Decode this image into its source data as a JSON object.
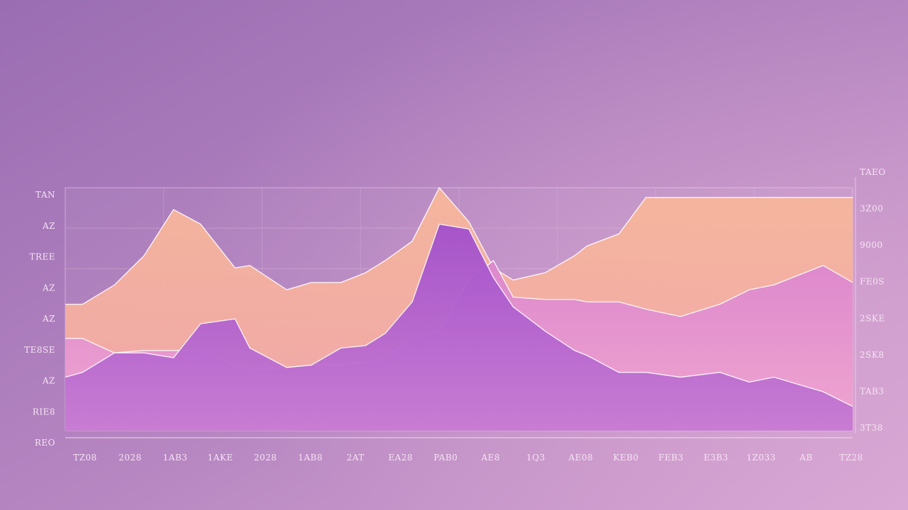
{
  "chart_data": {
    "type": "area",
    "title": "",
    "xlabel": "",
    "ylabel": "",
    "x_tick_labels": [
      "TZ08",
      "2028",
      "1AB3",
      "1AKE",
      "2028",
      "1AB8",
      "2AT",
      "EA28",
      "PAB0",
      "AE8",
      "1Q3",
      "AE08",
      "KEB0",
      "FEB3",
      "E3B3",
      "1Z033",
      "AB",
      "TZ28"
    ],
    "y_left_tick_labels": [
      "TAN",
      "AZ",
      "TREE",
      "AZ",
      "AZ",
      "TE8SE",
      "AZ",
      "RIE8",
      "REO"
    ],
    "y_right_tick_labels": [
      "TAEO",
      "3Z00",
      "9000",
      "FE0S",
      "2SKE",
      "2SK8",
      "TAB3",
      "3T38"
    ],
    "ylim": [
      0,
      100
    ],
    "grid": true,
    "legend": "none",
    "x": [
      0,
      0.35,
      1,
      1.6,
      2.2,
      2.75,
      3.45,
      3.75,
      4.5,
      5,
      5.6,
      6.1,
      6.5,
      7.05,
      7.6,
      8.2,
      8.7,
      9.1,
      9.75,
      10.35,
      10.6,
      11.25,
      11.8,
      12.5,
      13.3,
      13.9,
      14.4,
      15.4,
      16
    ],
    "series": [
      {
        "color": "#f4b39a",
        "values": [
          52,
          52,
          60,
          72,
          91,
          85,
          67,
          68,
          58,
          61,
          61,
          65,
          70,
          78,
          100,
          86,
          67,
          62,
          65,
          72,
          76,
          81,
          96,
          96,
          96,
          96,
          96,
          96,
          96
        ]
      },
      {
        "color": "#ed9fd0",
        "values": [
          38,
          38,
          32,
          33,
          33,
          33,
          27,
          25,
          26,
          27,
          27,
          28,
          30,
          38,
          41,
          62,
          70,
          55,
          54,
          54,
          53,
          53,
          50,
          47,
          52,
          58,
          60,
          68,
          61
        ]
      },
      {
        "color": "#a657cc",
        "values": [
          22,
          24,
          32,
          32,
          30,
          44,
          46,
          34,
          26,
          27,
          34,
          35,
          40,
          53,
          85,
          83,
          63,
          51,
          41,
          33,
          31,
          24,
          24,
          22,
          24,
          20,
          22,
          16,
          10
        ]
      }
    ]
  }
}
